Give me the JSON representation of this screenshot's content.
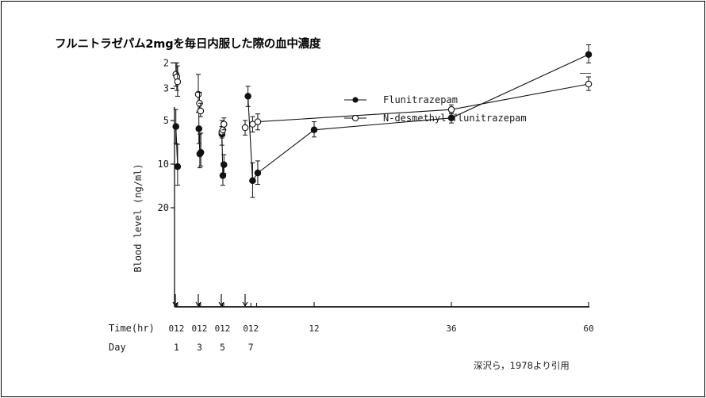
{
  "title": "フルニトラゼパム2mgを毎日内服した際の血中濃度",
  "citation": "深沢ら，1978より引用",
  "chart_data": {
    "type": "line",
    "ylabel": "Blood level (ng/ml)",
    "y_scale": "log",
    "ylim": [
      1.3,
      25
    ],
    "y_ticks": [
      2,
      3,
      5,
      10,
      20
    ],
    "x_title": "Time(hr)",
    "day_title": "Day",
    "x_labels": [
      {
        "text": "012",
        "hour": 1
      },
      {
        "text": "012",
        "hour": 21
      },
      {
        "text": "012",
        "hour": 41
      },
      {
        "text": "012",
        "hour": 61
      },
      {
        "text": "12",
        "hour": 72
      },
      {
        "text": "36",
        "hour": 96
      },
      {
        "text": "60",
        "hour": 120
      }
    ],
    "day_labels": [
      {
        "text": "1",
        "hour": 1
      },
      {
        "text": "3",
        "hour": 21
      },
      {
        "text": "5",
        "hour": 41
      },
      {
        "text": "7",
        "hour": 61
      }
    ],
    "dose_hours": [
      0,
      20,
      40,
      60
    ],
    "series": [
      {
        "name": "Flunitrazepam",
        "marker": "filled",
        "points": [
          {
            "x": 0.5,
            "y": 5.5,
            "lo": 4.2,
            "hi": 7.2
          },
          {
            "x": 2,
            "y": 10.4,
            "lo": 7.3,
            "hi": 14.0
          },
          {
            "x": 20.5,
            "y": 5.7,
            "lo": 4.3,
            "hi": 7.2
          },
          {
            "x": 21.3,
            "y": 8.5,
            "lo": 6.2,
            "hi": 10.6
          },
          {
            "x": 22.2,
            "y": 8.3,
            "lo": 6.1,
            "hi": 10.3
          },
          {
            "x": 40.5,
            "y": 6.2,
            "lo": 5.0,
            "hi": 7.4
          },
          {
            "x": 41.3,
            "y": 12.0,
            "lo": 9.8,
            "hi": 14.0
          },
          {
            "x": 42.2,
            "y": 10.1,
            "lo": 8.6,
            "hi": 11.6
          },
          {
            "x": 60.5,
            "y": 3.4,
            "lo": 2.9,
            "hi": 4.0
          },
          {
            "x": 61.3,
            "y": 13.0,
            "lo": 9.8,
            "hi": 17.0
          },
          {
            "x": 62.2,
            "y": 11.5,
            "lo": 9.5,
            "hi": 13.8
          },
          {
            "x": 72,
            "y": 5.8,
            "lo": 5.1,
            "hi": 6.5
          },
          {
            "x": 96,
            "y": 4.8,
            "lo": 4.4,
            "hi": 5.2
          },
          {
            "x": 120,
            "y": 1.75,
            "lo": 1.5,
            "hi": 2.0
          }
        ]
      },
      {
        "name": "N-desmethyl-flunitrazepam",
        "marker": "open",
        "points": [
          {
            "x": 0.5,
            "y": 2.4,
            "lo": 2.0,
            "hi": 2.9
          },
          {
            "x": 1.3,
            "y": 2.5,
            "lo": 2.0,
            "hi": 3.1
          },
          {
            "x": 2,
            "y": 2.7,
            "lo": 2.1,
            "hi": 3.4
          },
          {
            "x": 20,
            "y": 3.3,
            "lo": 2.4,
            "hi": 4.4
          },
          {
            "x": 21,
            "y": 3.8,
            "lo": 3.2,
            "hi": 4.4
          },
          {
            "x": 22,
            "y": 4.3,
            "lo": 3.8,
            "hi": 4.7
          },
          {
            "x": 40.5,
            "y": 6.0,
            "lo": 5.5,
            "hi": 6.6
          },
          {
            "x": 41.3,
            "y": 5.8,
            "lo": 5.2,
            "hi": 6.4
          },
          {
            "x": 42.2,
            "y": 5.3,
            "lo": 4.8,
            "hi": 5.8
          },
          {
            "x": 60,
            "y": 5.6,
            "lo": 5.0,
            "hi": 6.3
          },
          {
            "x": 61.3,
            "y": 5.3,
            "lo": 4.7,
            "hi": 6.0
          },
          {
            "x": 62.2,
            "y": 5.1,
            "lo": 4.5,
            "hi": 5.8
          },
          {
            "x": 96,
            "y": 4.2,
            "lo": 3.9,
            "hi": 4.5
          },
          {
            "x": 120,
            "y": 2.8,
            "lo": 2.5,
            "hi": 3.1
          }
        ]
      }
    ],
    "lines": [
      {
        "series": "Flunitrazepam",
        "segments": [
          [
            0,
            1
          ],
          [
            2,
            3,
            4
          ],
          [
            5,
            6,
            7
          ],
          [
            8,
            9,
            10,
            11,
            12,
            13
          ]
        ]
      },
      {
        "series": "N-desmethyl-flunitrazepam",
        "segments": [
          [
            11,
            12,
            13
          ]
        ]
      }
    ]
  }
}
